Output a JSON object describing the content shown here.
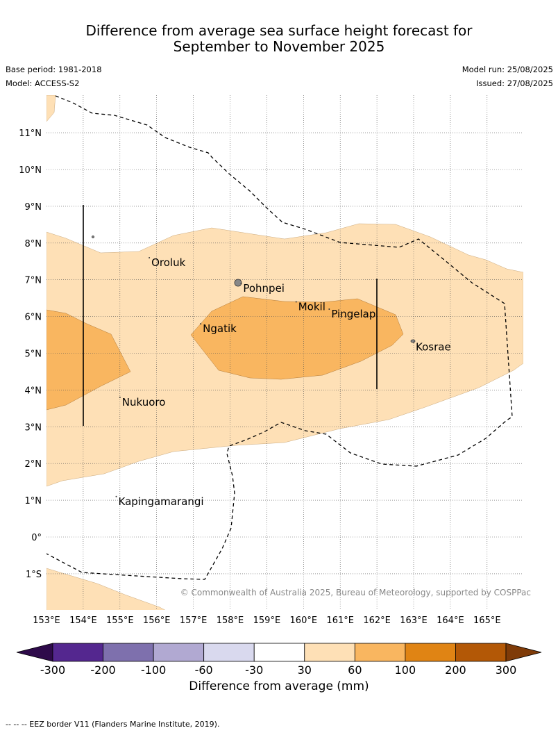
{
  "title_line1": "Difference from average sea surface height forecast for",
  "title_line2": "September to November 2025",
  "base_period": "Base period: 1981-2018",
  "model": "Model: ACCESS-S2",
  "model_run": "Model run: 25/08/2025",
  "issued": "Issued: 27/08/2025",
  "copyright": "© Commonwealth of Australia 2025, Bureau of Meteorology, supported by COSPPac",
  "footer": "-- -- -- EEZ border V11 (Flanders Marine Institute, 2019).",
  "lon_labels": [
    "153°E",
    "154°E",
    "155°E",
    "156°E",
    "157°E",
    "158°E",
    "159°E",
    "160°E",
    "161°E",
    "162°E",
    "163°E",
    "164°E",
    "165°E"
  ],
  "lat_labels": [
    "11°N",
    "10°N",
    "9°N",
    "8°N",
    "7°N",
    "6°N",
    "5°N",
    "4°N",
    "3°N",
    "2°N",
    "1°N",
    "0°",
    "1°S"
  ],
  "places": [
    {
      "name": "Oroluk",
      "lon": 155.8,
      "lat": 7.6
    },
    {
      "name": "Pohnpei",
      "lon": 158.3,
      "lat": 6.9
    },
    {
      "name": "Mokil",
      "lon": 159.8,
      "lat": 6.4
    },
    {
      "name": "Pingelap",
      "lon": 160.7,
      "lat": 6.2
    },
    {
      "name": "Ngatik",
      "lon": 157.2,
      "lat": 5.8
    },
    {
      "name": "Kosrae",
      "lon": 163.0,
      "lat": 5.3
    },
    {
      "name": "Nukuoro",
      "lon": 155.0,
      "lat": 3.8
    },
    {
      "name": "Kapingamarangi",
      "lon": 154.9,
      "lat": 1.1
    }
  ],
  "colorbar": {
    "ticks": [
      "-300",
      "-200",
      "-100",
      "-60",
      "-30",
      "30",
      "60",
      "100",
      "200",
      "300"
    ],
    "colors": [
      "#2e0a4a",
      "#54278f",
      "#7e70ad",
      "#b1a9d2",
      "#d9d9ee",
      "#ffffff",
      "#fee0b6",
      "#f9b660",
      "#e08414",
      "#b35806",
      "#7f3b08"
    ],
    "label": "Difference from average (mm)"
  },
  "legend_colors": {
    "band_30_60": "#fee0b6",
    "band_60_100": "#f9b660"
  }
}
